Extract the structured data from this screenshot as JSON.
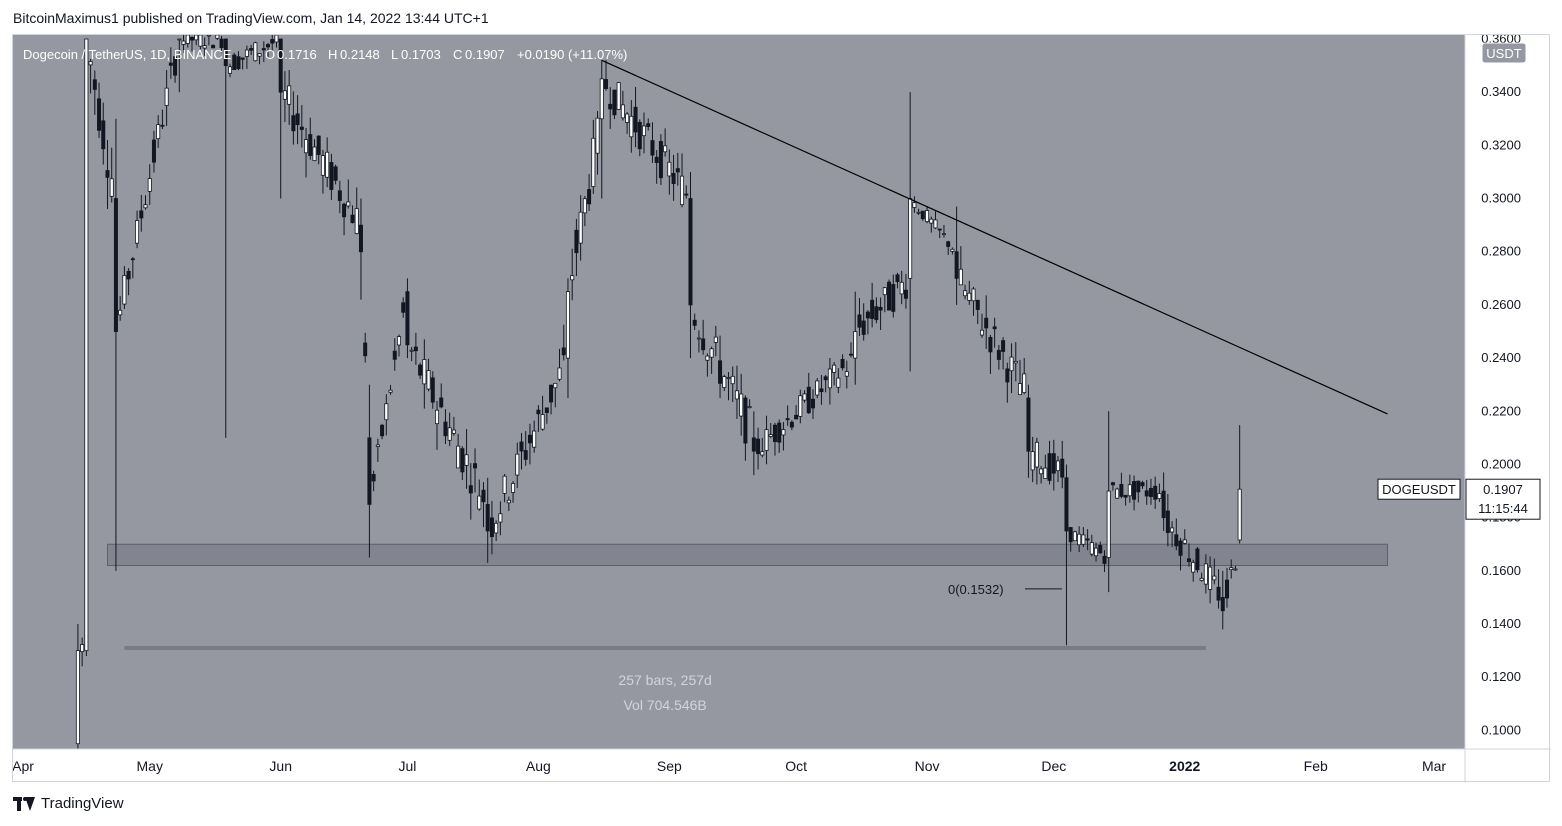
{
  "header": {
    "publisher_line": "BitcoinMaximus1 published on TradingView.com, Jan 14, 2022 13:44 UTC+1"
  },
  "legend": {
    "symbol": "Dogecoin / TetherUS, 1D, BINANCE",
    "o_label": "O",
    "o_value": "0.1716",
    "h_label": "H",
    "h_value": "0.2148",
    "l_label": "L",
    "l_value": "0.1703",
    "c_label": "C",
    "c_value": "0.1907",
    "change": "+0.0190 (+11.07%)"
  },
  "price_scale": {
    "currency": "USDT",
    "ticks": [
      "0.3600",
      "0.3400",
      "0.3200",
      "0.3000",
      "0.2800",
      "0.2600",
      "0.2400",
      "0.2200",
      "0.2000",
      "0.1800",
      "0.1600",
      "0.1400",
      "0.1200",
      "0.1000"
    ]
  },
  "time_scale": {
    "ticks": [
      "Apr",
      "May",
      "Jun",
      "Jul",
      "Aug",
      "Sep",
      "Oct",
      "Nov",
      "Dec",
      "2022",
      "Feb",
      "Mar"
    ]
  },
  "last_price": {
    "symbol": "DOGEUSDT",
    "price": "0.1907",
    "countdown": "11:15:44"
  },
  "annotations": {
    "fib_label": "0(0.1532)",
    "range_bars": "257 bars, 257d",
    "range_vol": "Vol 704.546B"
  },
  "footer": {
    "brand": "TradingView"
  },
  "colors": {
    "background": "#9598a1",
    "candle": "#131722",
    "axis_text": "#131722",
    "support_zone": "#787b86",
    "trendline": "#000000"
  },
  "chart_data": {
    "type": "candlestick",
    "title": "Dogecoin / TetherUS, 1D, BINANCE",
    "ylim": [
      0.09,
      0.36
    ],
    "x_range": [
      "2021-04-01",
      "2022-03-01"
    ],
    "trendline": {
      "start": {
        "date": "2021-08-16",
        "price": 0.352
      },
      "end": {
        "date": "2022-02-18",
        "price": 0.219
      }
    },
    "support_zone": {
      "from": "2021-04-21",
      "to": "2022-02-18",
      "low": 0.162,
      "high": 0.17
    },
    "fib_level": {
      "date": "2021-11-23",
      "price": 0.1532
    },
    "date_range_measure": {
      "from": "2021-04-25",
      "to": "2022-01-06",
      "price": 0.131
    },
    "candles_approx": [
      {
        "date": "2021-04-14",
        "o": 0.095,
        "h": 0.14,
        "l": 0.092,
        "c": 0.13
      },
      {
        "date": "2021-04-16",
        "o": 0.13,
        "h": 0.36,
        "l": 0.128,
        "c": 0.36
      },
      {
        "date": "2021-04-23",
        "o": 0.3,
        "h": 0.33,
        "l": 0.16,
        "c": 0.25
      },
      {
        "date": "2021-05-08",
        "o": 0.36,
        "h": 0.36,
        "l": 0.34,
        "c": 0.36
      },
      {
        "date": "2021-05-19",
        "o": 0.36,
        "h": 0.36,
        "l": 0.21,
        "c": 0.35
      },
      {
        "date": "2021-06-01",
        "o": 0.36,
        "h": 0.36,
        "l": 0.3,
        "c": 0.34
      },
      {
        "date": "2021-06-20",
        "o": 0.29,
        "h": 0.3,
        "l": 0.262,
        "c": 0.28
      },
      {
        "date": "2021-06-22",
        "o": 0.21,
        "h": 0.23,
        "l": 0.165,
        "c": 0.185
      },
      {
        "date": "2021-07-01",
        "o": 0.265,
        "h": 0.27,
        "l": 0.24,
        "c": 0.245
      },
      {
        "date": "2021-07-20",
        "o": 0.185,
        "h": 0.195,
        "l": 0.163,
        "c": 0.175
      },
      {
        "date": "2021-08-08",
        "o": 0.24,
        "h": 0.27,
        "l": 0.225,
        "c": 0.265
      },
      {
        "date": "2021-08-16",
        "o": 0.33,
        "h": 0.352,
        "l": 0.3,
        "c": 0.345
      },
      {
        "date": "2021-09-06",
        "o": 0.3,
        "h": 0.31,
        "l": 0.24,
        "c": 0.26
      },
      {
        "date": "2021-09-21",
        "o": 0.21,
        "h": 0.22,
        "l": 0.196,
        "c": 0.205
      },
      {
        "date": "2021-10-15",
        "o": 0.24,
        "h": 0.265,
        "l": 0.23,
        "c": 0.25
      },
      {
        "date": "2021-10-28",
        "o": 0.27,
        "h": 0.34,
        "l": 0.235,
        "c": 0.3
      },
      {
        "date": "2021-11-08",
        "o": 0.28,
        "h": 0.297,
        "l": 0.26,
        "c": 0.27
      },
      {
        "date": "2021-11-25",
        "o": 0.225,
        "h": 0.23,
        "l": 0.195,
        "c": 0.205
      },
      {
        "date": "2021-12-04",
        "o": 0.195,
        "h": 0.2,
        "l": 0.132,
        "c": 0.175
      },
      {
        "date": "2021-12-14",
        "o": 0.165,
        "h": 0.22,
        "l": 0.152,
        "c": 0.19
      },
      {
        "date": "2021-12-27",
        "o": 0.19,
        "h": 0.197,
        "l": 0.175,
        "c": 0.18
      },
      {
        "date": "2022-01-10",
        "o": 0.15,
        "h": 0.16,
        "l": 0.138,
        "c": 0.145
      },
      {
        "date": "2022-01-14",
        "o": 0.1716,
        "h": 0.2148,
        "l": 0.1703,
        "c": 0.1907
      }
    ]
  }
}
